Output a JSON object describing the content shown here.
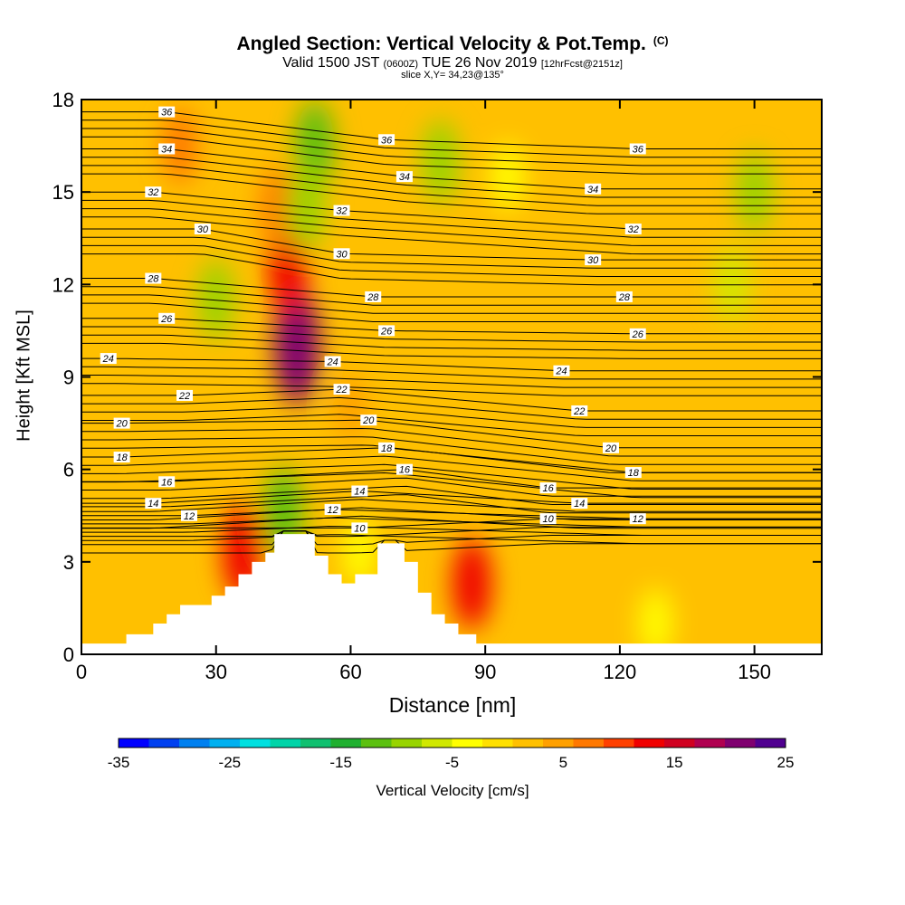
{
  "header": {
    "title": "Angled Section: Vertical Velocity & Pot.Temp.",
    "title_suffix": "(C)",
    "subtitle_a": "Valid 1500 JST",
    "subtitle_b": "(0600Z)",
    "subtitle_c": "TUE 26 Nov 2019",
    "subtitle_d": "[12hrFcst@2151z]",
    "slice_text": "slice X,Y= 34,23@135°"
  },
  "colorbar": {
    "label": "Vertical Velocity [cm/s]",
    "tick_labels": [
      "-35",
      "-25",
      "-15",
      "-5",
      "5",
      "15",
      "25"
    ],
    "min": -35,
    "max": 25,
    "colors": [
      "#0000ff",
      "#0040f0",
      "#0080f0",
      "#00b0f0",
      "#00e0e0",
      "#00d4a8",
      "#10c070",
      "#20b030",
      "#5cc010",
      "#98d400",
      "#d0e800",
      "#ffff00",
      "#ffe000",
      "#ffc000",
      "#ffa000",
      "#ff7800",
      "#ff4000",
      "#f00000",
      "#d00020",
      "#b00050",
      "#800070",
      "#500090"
    ]
  },
  "chart_data": {
    "type": "heatmap",
    "title": "Angled Section: Vertical Velocity & Pot.Temp.",
    "xlabel": "Distance [nm]",
    "ylabel": "Height [Kft MSL]",
    "xlim": [
      0,
      165
    ],
    "ylim": [
      0,
      18
    ],
    "x_ticks": [
      0,
      30,
      60,
      90,
      120,
      150
    ],
    "y_ticks": [
      0,
      3,
      6,
      9,
      12,
      15,
      18
    ],
    "terrain": [
      [
        0,
        0.35
      ],
      [
        10,
        0.35
      ],
      [
        10,
        0.65
      ],
      [
        16,
        0.65
      ],
      [
        16,
        1.0
      ],
      [
        19,
        1.0
      ],
      [
        19,
        1.3
      ],
      [
        22,
        1.3
      ],
      [
        22,
        1.6
      ],
      [
        29,
        1.6
      ],
      [
        29,
        1.9
      ],
      [
        32,
        1.9
      ],
      [
        32,
        2.2
      ],
      [
        35,
        2.2
      ],
      [
        35,
        2.6
      ],
      [
        38,
        2.6
      ],
      [
        38,
        3.0
      ],
      [
        41,
        3.0
      ],
      [
        41,
        3.3
      ],
      [
        43,
        3.3
      ],
      [
        43,
        3.9
      ],
      [
        52,
        3.9
      ],
      [
        52,
        3.2
      ],
      [
        55,
        3.2
      ],
      [
        55,
        2.6
      ],
      [
        58,
        2.6
      ],
      [
        58,
        2.3
      ],
      [
        61,
        2.3
      ],
      [
        61,
        2.6
      ],
      [
        63,
        2.6
      ],
      [
        63,
        2.6
      ],
      [
        66,
        2.6
      ],
      [
        66,
        3.6
      ],
      [
        72,
        3.6
      ],
      [
        72,
        3.0
      ],
      [
        75,
        3.0
      ],
      [
        75,
        2.0
      ],
      [
        78,
        2.0
      ],
      [
        78,
        1.3
      ],
      [
        81,
        1.3
      ],
      [
        81,
        1.0
      ],
      [
        84,
        1.0
      ],
      [
        84,
        0.65
      ],
      [
        88,
        0.65
      ],
      [
        88,
        0.35
      ],
      [
        165,
        0.35
      ]
    ],
    "velocity_features": [
      {
        "x": 48,
        "y": 10.0,
        "value": 22
      },
      {
        "x": 46,
        "y": 12.5,
        "value": 12
      },
      {
        "x": 44,
        "y": 14.5,
        "value": 8
      },
      {
        "x": 52,
        "y": 16.5,
        "value": -12
      },
      {
        "x": 50,
        "y": 14.5,
        "value": -10
      },
      {
        "x": 36,
        "y": 3.3,
        "value": 14
      },
      {
        "x": 87,
        "y": 2.3,
        "value": 12
      },
      {
        "x": 45,
        "y": 4.6,
        "value": -12
      },
      {
        "x": 62,
        "y": 3.3,
        "value": -4
      },
      {
        "x": 30,
        "y": 11.5,
        "value": -8
      },
      {
        "x": 80,
        "y": 16.0,
        "value": -9
      },
      {
        "x": 150,
        "y": 15.0,
        "value": -8
      },
      {
        "x": 145,
        "y": 12.0,
        "value": -6
      },
      {
        "x": 60,
        "y": 8.0,
        "value": 4
      },
      {
        "x": 22,
        "y": 16.5,
        "value": 6
      },
      {
        "x": 95,
        "y": 15.5,
        "value": -3
      },
      {
        "x": 128,
        "y": 1.0,
        "value": -4
      }
    ],
    "isotherm_labels": [
      {
        "text": "36",
        "x": 19,
        "y": 17.6
      },
      {
        "text": "36",
        "x": 68,
        "y": 16.7
      },
      {
        "text": "36",
        "x": 124,
        "y": 16.4
      },
      {
        "text": "34",
        "x": 19,
        "y": 16.4
      },
      {
        "text": "34",
        "x": 72,
        "y": 15.5
      },
      {
        "text": "34",
        "x": 114,
        "y": 15.1
      },
      {
        "text": "32",
        "x": 16,
        "y": 15.0
      },
      {
        "text": "32",
        "x": 58,
        "y": 14.4
      },
      {
        "text": "32",
        "x": 123,
        "y": 13.8
      },
      {
        "text": "30",
        "x": 27,
        "y": 13.8
      },
      {
        "text": "30",
        "x": 58,
        "y": 13.0
      },
      {
        "text": "30",
        "x": 114,
        "y": 12.8
      },
      {
        "text": "28",
        "x": 16,
        "y": 12.2
      },
      {
        "text": "28",
        "x": 65,
        "y": 11.6
      },
      {
        "text": "28",
        "x": 121,
        "y": 11.6
      },
      {
        "text": "26",
        "x": 19,
        "y": 10.9
      },
      {
        "text": "26",
        "x": 68,
        "y": 10.5
      },
      {
        "text": "26",
        "x": 124,
        "y": 10.4
      },
      {
        "text": "24",
        "x": 6,
        "y": 9.6
      },
      {
        "text": "24",
        "x": 56,
        "y": 9.5
      },
      {
        "text": "24",
        "x": 107,
        "y": 9.2
      },
      {
        "text": "22",
        "x": 23,
        "y": 8.4
      },
      {
        "text": "22",
        "x": 58,
        "y": 8.6
      },
      {
        "text": "22",
        "x": 111,
        "y": 7.9
      },
      {
        "text": "20",
        "x": 9,
        "y": 7.5
      },
      {
        "text": "20",
        "x": 64,
        "y": 7.6
      },
      {
        "text": "20",
        "x": 118,
        "y": 6.7
      },
      {
        "text": "18",
        "x": 9,
        "y": 6.4
      },
      {
        "text": "18",
        "x": 68,
        "y": 6.7
      },
      {
        "text": "18",
        "x": 123,
        "y": 5.9
      },
      {
        "text": "16",
        "x": 19,
        "y": 5.6
      },
      {
        "text": "16",
        "x": 72,
        "y": 6.0
      },
      {
        "text": "16",
        "x": 104,
        "y": 5.4
      },
      {
        "text": "14",
        "x": 16,
        "y": 4.9
      },
      {
        "text": "14",
        "x": 62,
        "y": 5.3
      },
      {
        "text": "14",
        "x": 111,
        "y": 4.9
      },
      {
        "text": "12",
        "x": 24,
        "y": 4.5
      },
      {
        "text": "12",
        "x": 56,
        "y": 4.7
      },
      {
        "text": "12",
        "x": 124,
        "y": 4.4
      },
      {
        "text": "10",
        "x": 62,
        "y": 4.1
      },
      {
        "text": "10",
        "x": 104,
        "y": 4.4
      }
    ]
  }
}
